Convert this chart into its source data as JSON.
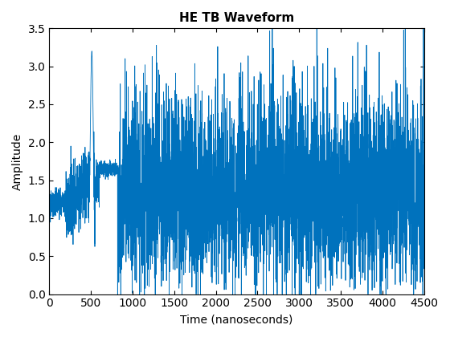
{
  "title": "HE TB Waveform",
  "xlabel": "Time (nanoseconds)",
  "ylabel": "Amplitude",
  "xlim": [
    0,
    4500
  ],
  "ylim": [
    0,
    3.5
  ],
  "xticks": [
    0,
    500,
    1000,
    1500,
    2000,
    2500,
    3000,
    3500,
    4000,
    4500
  ],
  "yticks": [
    0,
    0.5,
    1.0,
    1.5,
    2.0,
    2.5,
    3.0,
    3.5
  ],
  "line_color": "#0072BD",
  "line_width": 0.6,
  "figsize": [
    5.6,
    4.2
  ],
  "dpi": 100,
  "seed": 42,
  "n_points": 4500,
  "title_fontsize": 11,
  "label_fontsize": 10
}
